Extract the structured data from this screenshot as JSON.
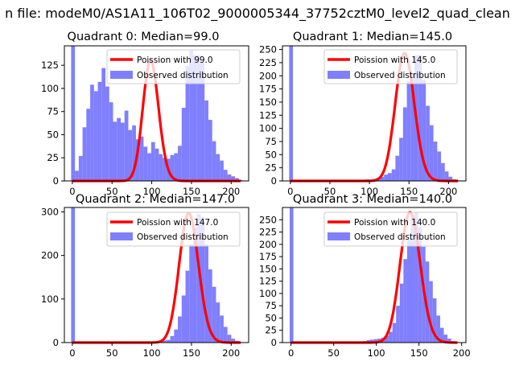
{
  "figure": {
    "suptitle": "n file: modeM0/AS1A11_106T02_9000005344_37752cztM0_level2_quad_clean"
  },
  "chart_data": [
    {
      "type": "bar",
      "title": "Quadrant 0: Median=99.0",
      "xlim": [
        -10,
        222
      ],
      "ylim": [
        0,
        146
      ],
      "xticks": [
        0,
        50,
        100,
        150,
        200
      ],
      "yticks": [
        0,
        25,
        50,
        75,
        100,
        125
      ],
      "bin_start": -1.5,
      "bin_width": 4.8,
      "hist_values": [
        146,
        11,
        27,
        58,
        78,
        104,
        97,
        107,
        122,
        102,
        85,
        64,
        68,
        63,
        76,
        55,
        60,
        45,
        48,
        37,
        30,
        42,
        35,
        29,
        25,
        24,
        28,
        30,
        38,
        79,
        124,
        141,
        136,
        136,
        128,
        87,
        66,
        43,
        29,
        22,
        12,
        7,
        5,
        3,
        1
      ],
      "hist_color": "#7f7fff",
      "poisson": {
        "mean": 99.0,
        "peak": 130,
        "color": "#ff0000"
      },
      "legend": {
        "line_label": "Poission with 99.0",
        "hist_label": "Observed distribution",
        "position": "upper right"
      }
    },
    {
      "type": "bar",
      "title": "Quadrant 1: Median=145.0",
      "xlim": [
        -10,
        222
      ],
      "ylim": [
        0,
        257
      ],
      "xticks": [
        0,
        50,
        100,
        150,
        200
      ],
      "yticks": [
        0,
        25,
        50,
        75,
        100,
        125,
        150,
        175,
        200,
        225,
        250
      ],
      "bin_start": -1.5,
      "bin_width": 4.8,
      "hist_values": [
        257,
        0,
        0,
        0,
        0,
        0,
        0,
        0,
        0,
        0,
        0,
        0,
        0,
        0,
        0,
        0,
        0,
        0,
        1,
        1,
        3,
        2,
        4,
        6,
        8,
        12,
        15,
        22,
        48,
        82,
        140,
        190,
        205,
        239,
        240,
        192,
        143,
        106,
        75,
        56,
        34,
        18,
        8,
        3,
        1
      ],
      "hist_color": "#7f7fff",
      "poisson": {
        "mean": 145.0,
        "peak": 243,
        "color": "#ff0000"
      },
      "legend": {
        "line_label": "Poission with 145.0",
        "hist_label": "Observed distribution",
        "position": "upper right"
      }
    },
    {
      "type": "bar",
      "title": "Quadrant 2: Median=147.0",
      "xlim": [
        -10,
        222
      ],
      "ylim": [
        0,
        310
      ],
      "xticks": [
        0,
        50,
        100,
        150,
        200
      ],
      "yticks": [
        0,
        100,
        200,
        300
      ],
      "bin_start": -1.5,
      "bin_width": 4.8,
      "hist_values": [
        310,
        0,
        0,
        0,
        0,
        0,
        0,
        0,
        0,
        0,
        0,
        0,
        0,
        0,
        0,
        0,
        0,
        0,
        0,
        1,
        2,
        2,
        2,
        3,
        5,
        6,
        15,
        30,
        60,
        108,
        165,
        225,
        265,
        295,
        288,
        225,
        168,
        128,
        92,
        62,
        36,
        18,
        9,
        4,
        1
      ],
      "hist_color": "#7f7fff",
      "poisson": {
        "mean": 147.0,
        "peak": 297,
        "color": "#ff0000"
      },
      "legend": {
        "line_label": "Poission with 147.0",
        "hist_label": "Observed distribution",
        "position": "upper right"
      }
    },
    {
      "type": "bar",
      "title": "Quadrant 3: Median=140.0",
      "xlim": [
        -10,
        205
      ],
      "ylim": [
        0,
        275
      ],
      "xticks": [
        0,
        50,
        100,
        150,
        200
      ],
      "yticks": [
        0,
        25,
        50,
        75,
        100,
        125,
        150,
        175,
        200,
        225,
        250
      ],
      "bin_start": -1.5,
      "bin_width": 4.3,
      "hist_values": [
        275,
        1,
        0,
        0,
        0,
        0,
        0,
        0,
        0,
        0,
        0,
        0,
        0,
        0,
        0,
        0,
        0,
        0,
        1,
        2,
        3,
        5,
        6,
        7,
        8,
        10,
        14,
        22,
        40,
        75,
        120,
        170,
        210,
        255,
        265,
        235,
        195,
        165,
        125,
        90,
        55,
        30,
        16,
        8,
        3,
        1
      ],
      "hist_color": "#7f7fff",
      "poisson": {
        "mean": 140.0,
        "peak": 265,
        "color": "#ff0000"
      },
      "legend": {
        "line_label": "Poission with 140.0",
        "hist_label": "Observed distribution",
        "position": "upper right"
      }
    }
  ]
}
